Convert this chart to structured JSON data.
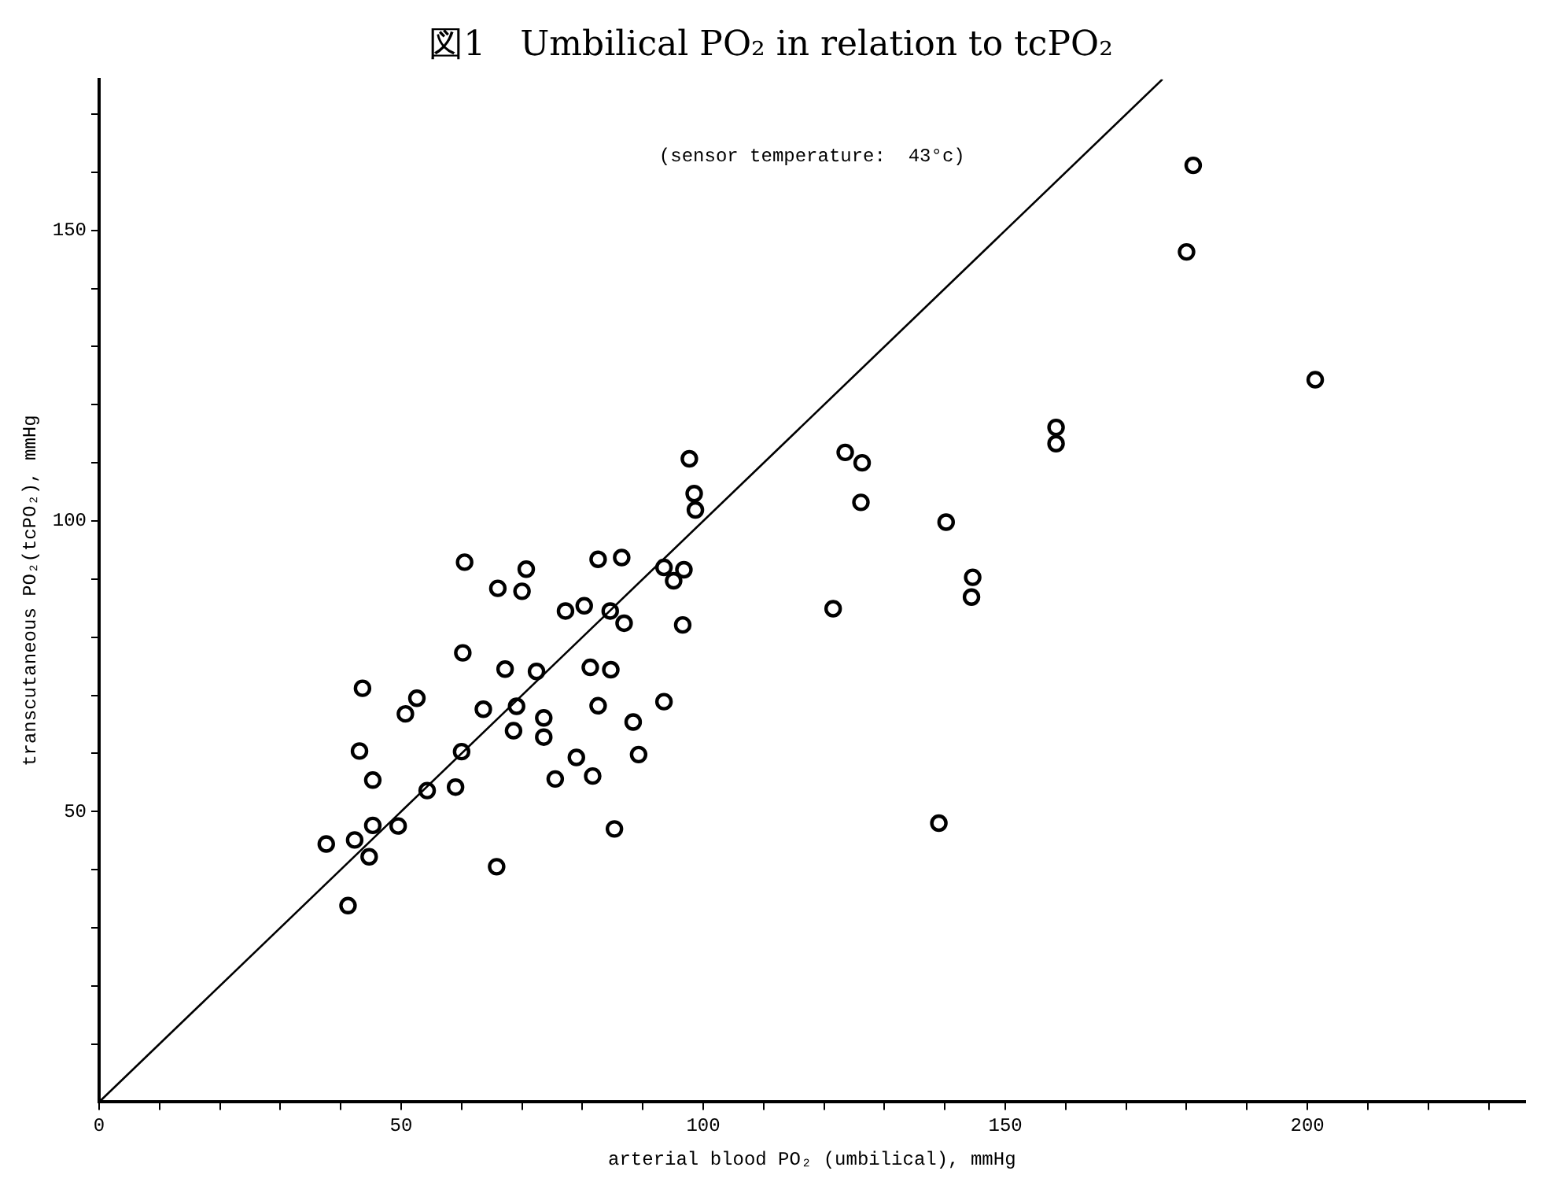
{
  "chart_data": {
    "type": "scatter",
    "title": "図1　Umbilical PO₂ in relation to tcPO₂",
    "xlabel": "arterial blood PO₂ (umbilical), mmHg",
    "ylabel": "transcutaneous PO₂(tcPO₂), mmHg",
    "annotations": [
      "(sensor temperature:  43°c)"
    ],
    "xlim": [
      0,
      236
    ],
    "xticks": [
      0,
      {
        "value": 10,
        "label": null
      },
      {
        "value": 20,
        "label": null
      },
      {
        "value": 30,
        "label": null
      },
      {
        "value": 40,
        "label": null
      },
      50,
      {
        "value": 60,
        "label": null
      },
      {
        "value": 70,
        "label": null
      },
      {
        "value": 80,
        "label": null
      },
      {
        "value": 90,
        "label": null
      },
      100,
      {
        "value": 110,
        "label": null
      },
      {
        "value": 120,
        "label": null
      },
      {
        "value": 130,
        "label": null
      },
      {
        "value": 140,
        "label": null
      },
      150,
      {
        "value": 160,
        "label": null
      },
      {
        "value": 170,
        "label": null
      },
      {
        "value": 180,
        "label": null
      },
      {
        "value": 190,
        "label": null
      },
      200,
      {
        "value": 210,
        "label": null
      },
      {
        "value": 220,
        "label": null
      },
      {
        "value": 230,
        "label": null
      }
    ],
    "ylim": [
      0,
      176
    ],
    "yticks": [
      {
        "value": 10,
        "label": null
      },
      {
        "value": 20,
        "label": null
      },
      {
        "value": 30,
        "label": null
      },
      {
        "value": 40,
        "label": null
      },
      50,
      {
        "value": 60,
        "label": null
      },
      {
        "value": 70,
        "label": null
      },
      {
        "value": 80,
        "label": null
      },
      {
        "value": 90,
        "label": null
      },
      100,
      {
        "value": 110,
        "label": null
      },
      {
        "value": 120,
        "label": null
      },
      {
        "value": 130,
        "label": null
      },
      {
        "value": 140,
        "label": null
      },
      150,
      {
        "value": 160,
        "label": null
      },
      {
        "value": 170,
        "label": null
      }
    ],
    "grid": false,
    "legend": false,
    "series": [
      {
        "type": "scatter",
        "color": "#000000",
        "marker": "circle",
        "x": [
          37.6,
          42.3,
          44.7,
          41.2,
          43.6,
          43.1,
          45.3,
          45.3,
          49.5,
          50.7,
          52.6,
          54.3,
          59.0,
          60.0,
          60.2,
          60.5,
          63.6,
          65.8,
          66.0,
          67.2,
          68.6,
          69.1,
          70.0,
          70.7,
          72.4,
          73.6,
          73.6,
          75.5,
          77.2,
          79.0,
          80.3,
          81.3,
          81.7,
          82.6,
          82.6,
          84.6,
          84.7,
          85.3,
          86.5,
          86.9,
          88.4,
          89.3,
          93.5,
          93.5,
          95.1,
          96.8,
          96.6,
          97.7,
          98.5,
          98.7,
          123.5,
          126.3,
          126.1,
          121.5,
          140.2,
          144.6,
          144.4,
          139,
          158.4,
          158.4,
          180.0,
          181.1,
          201.3
        ],
        "values": [
          44.4,
          45.1,
          42.2,
          33.8,
          71.2,
          60.4,
          55.4,
          47.6,
          47.5,
          66.8,
          69.5,
          53.6,
          54.2,
          60.3,
          77.3,
          92.9,
          67.6,
          40.5,
          88.4,
          74.5,
          63.9,
          68.1,
          87.9,
          91.7,
          74.1,
          66.1,
          62.8,
          55.6,
          84.5,
          59.3,
          85.4,
          74.8,
          56.1,
          68.2,
          93.4,
          84.5,
          74.4,
          47.0,
          93.7,
          82.4,
          65.4,
          59.8,
          92.0,
          68.9,
          89.7,
          91.6,
          82.1,
          110.7,
          104.7,
          101.9,
          111.8,
          110.0,
          103.2,
          84.9,
          99.8,
          90.3,
          86.9,
          48,
          116.1,
          113.3,
          146.3,
          161.2,
          124.3
        ]
      },
      {
        "type": "line",
        "color": "#000000",
        "marker": "none",
        "line_style": "solid",
        "x": [
          0,
          176
        ],
        "values": [
          0,
          176
        ]
      }
    ]
  }
}
